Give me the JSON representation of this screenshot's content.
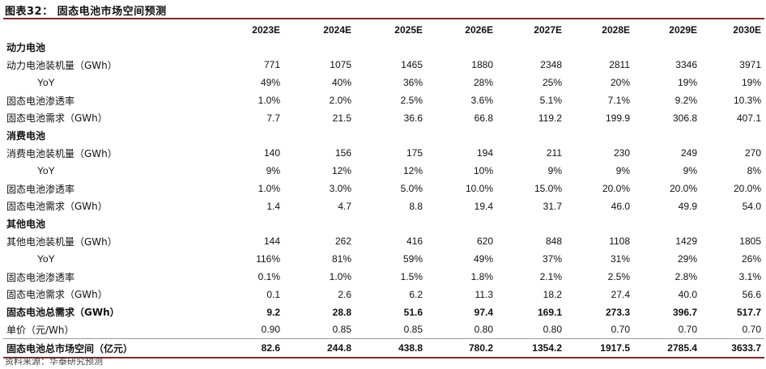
{
  "title": "图表32： 固态电池市场空间预测",
  "columns": [
    "2023E",
    "2024E",
    "2025E",
    "2026E",
    "2027E",
    "2028E",
    "2029E",
    "2030E"
  ],
  "rows": [
    {
      "label": "动力电池",
      "type": "section",
      "values": []
    },
    {
      "label": "动力电池装机量（GWh）",
      "type": "data",
      "values": [
        "771",
        "1075",
        "1465",
        "1880",
        "2348",
        "2811",
        "3346",
        "3971"
      ]
    },
    {
      "label": "YoY",
      "type": "sub",
      "values": [
        "49%",
        "40%",
        "36%",
        "28%",
        "25%",
        "20%",
        "19%",
        "19%"
      ]
    },
    {
      "label": "固态电池渗透率",
      "type": "data",
      "values": [
        "1.0%",
        "2.0%",
        "2.5%",
        "3.6%",
        "5.1%",
        "7.1%",
        "9.2%",
        "10.3%"
      ]
    },
    {
      "label": "固态电池需求（GWh）",
      "type": "data",
      "values": [
        "7.7",
        "21.5",
        "36.6",
        "66.8",
        "119.2",
        "199.9",
        "306.8",
        "407.1"
      ]
    },
    {
      "label": "消费电池",
      "type": "section",
      "values": []
    },
    {
      "label": "消费电池装机量（GWh）",
      "type": "data",
      "values": [
        "140",
        "156",
        "175",
        "194",
        "211",
        "230",
        "249",
        "270"
      ]
    },
    {
      "label": "YoY",
      "type": "sub",
      "values": [
        "9%",
        "12%",
        "12%",
        "10%",
        "9%",
        "9%",
        "9%",
        "8%"
      ]
    },
    {
      "label": "固态电池渗透率",
      "type": "data",
      "values": [
        "1.0%",
        "3.0%",
        "5.0%",
        "10.0%",
        "15.0%",
        "20.0%",
        "20.0%",
        "20.0%"
      ]
    },
    {
      "label": "固态电池需求（GWh）",
      "type": "data",
      "values": [
        "1.4",
        "4.7",
        "8.8",
        "19.4",
        "31.7",
        "46.0",
        "49.9",
        "54.0"
      ]
    },
    {
      "label": "其他电池",
      "type": "section",
      "values": []
    },
    {
      "label": "其他电池装机量（GWh）",
      "type": "data",
      "values": [
        "144",
        "262",
        "416",
        "620",
        "848",
        "1108",
        "1429",
        "1805"
      ]
    },
    {
      "label": "YoY",
      "type": "sub",
      "values": [
        "116%",
        "81%",
        "59%",
        "49%",
        "37%",
        "31%",
        "29%",
        "26%"
      ]
    },
    {
      "label": "固态电池渗透率",
      "type": "data",
      "values": [
        "0.1%",
        "1.0%",
        "1.5%",
        "1.8%",
        "2.1%",
        "2.5%",
        "2.8%",
        "3.1%"
      ]
    },
    {
      "label": "固态电池需求（GWh）",
      "type": "data",
      "values": [
        "0.1",
        "2.6",
        "6.2",
        "11.3",
        "18.2",
        "27.4",
        "40.0",
        "56.6"
      ]
    },
    {
      "label": "固态电池总需求（GWh）",
      "type": "bold",
      "values": [
        "9.2",
        "28.8",
        "51.6",
        "97.4",
        "169.1",
        "273.3",
        "396.7",
        "517.7"
      ]
    },
    {
      "label": "单价（元/Wh）",
      "type": "data",
      "values": [
        "0.90",
        "0.85",
        "0.85",
        "0.80",
        "0.80",
        "0.70",
        "0.70",
        "0.70"
      ]
    },
    {
      "label": "固态电池总市场空间（亿元）",
      "type": "total",
      "values": [
        "82.6",
        "244.8",
        "438.8",
        "780.2",
        "1354.2",
        "1917.5",
        "2785.4",
        "3633.7"
      ]
    }
  ],
  "source": "资料来源：华泰研究预测"
}
